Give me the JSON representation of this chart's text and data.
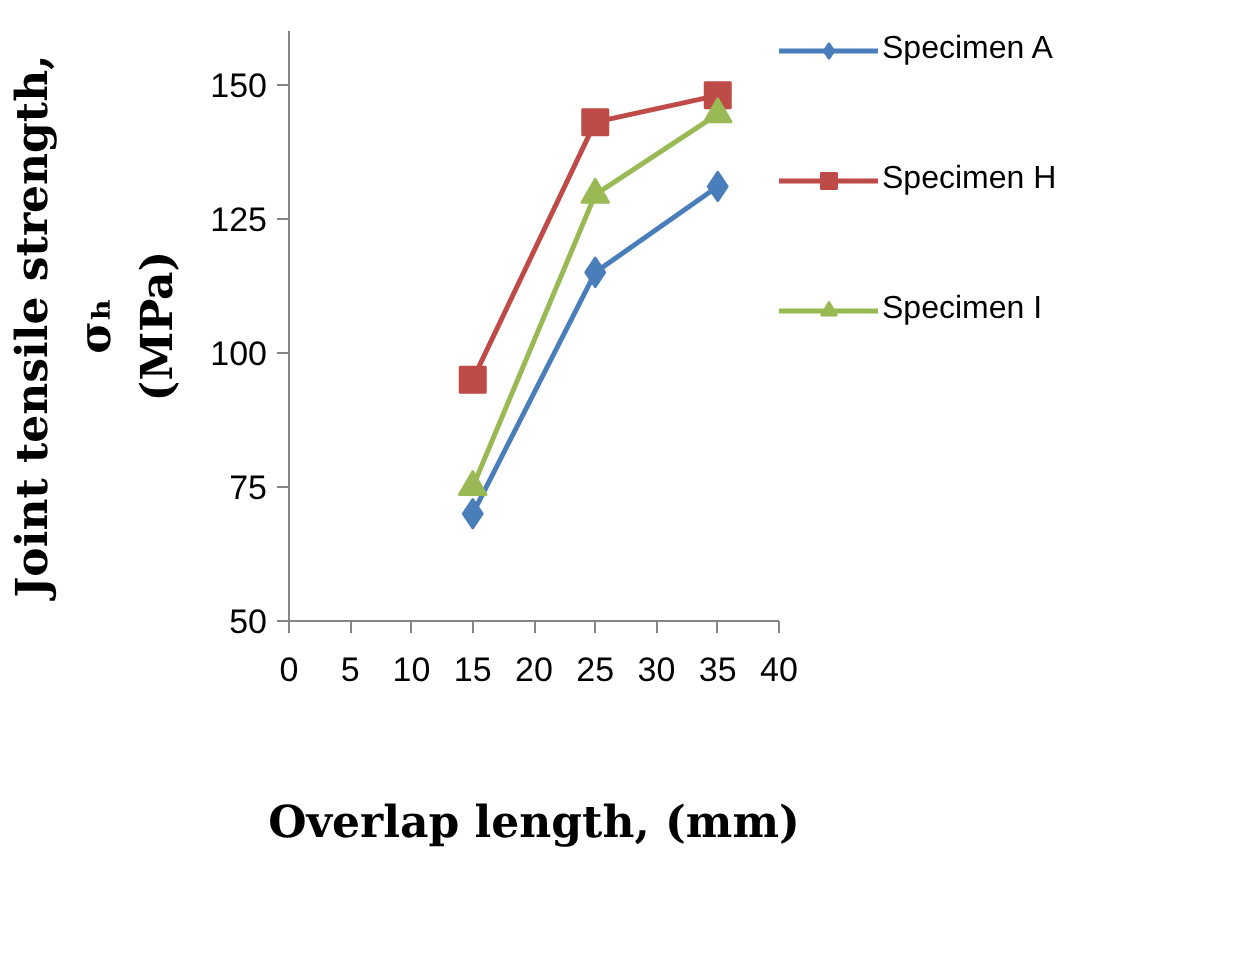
{
  "chart_data": {
    "type": "line",
    "xlabel": "Overlap length, (mm)",
    "ylabel": "Joint tensile strength,\nσₕ\n(MPa)",
    "x": [
      15,
      25,
      35
    ],
    "series": [
      {
        "name": "Specimen A",
        "color": "#4a7ebb",
        "values": [
          70,
          115,
          131
        ],
        "marker": "diamond"
      },
      {
        "name": "Specimen H",
        "color": "#be4b48",
        "values": [
          95,
          143,
          148
        ],
        "marker": "square"
      },
      {
        "name": "Specimen I",
        "color": "#98b954",
        "values": [
          75,
          129.5,
          144.5
        ],
        "marker": "triangle"
      }
    ],
    "xlim": [
      0,
      40
    ],
    "xticks": [
      0,
      5,
      10,
      15,
      20,
      25,
      30,
      35,
      40
    ],
    "ylim": [
      50,
      160
    ],
    "yticks": [
      50,
      75,
      100,
      125,
      150
    ],
    "legend": "right",
    "line_style": "solid"
  }
}
